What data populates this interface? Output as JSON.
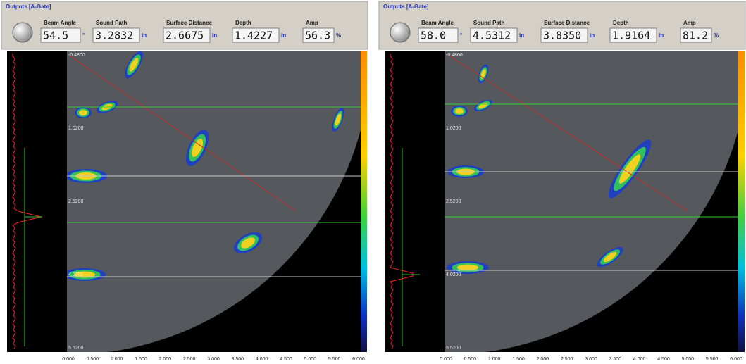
{
  "panels": [
    {
      "title": "Outputs [A-Gate]",
      "readouts": [
        {
          "label": "Beam Angle",
          "value": "54.5",
          "unit": "°"
        },
        {
          "label": "Sound Path",
          "value": "3.2832",
          "unit": "in"
        },
        {
          "label": "Surface Distance",
          "value": "2.6675",
          "unit": "in"
        },
        {
          "label": "Depth",
          "value": "1.4227",
          "unit": "in"
        },
        {
          "label": "Amp",
          "value": "56.3",
          "unit": "%"
        }
      ],
      "y_ticks": [
        "-0.4800",
        "1.0200",
        "2.5200",
        "4.0200",
        "5.5200"
      ],
      "x_ticks": [
        "0.000",
        "0.500",
        "1.000",
        "1.500",
        "2.000",
        "2.500",
        "3.000",
        "3.500",
        "4.000",
        "4.500",
        "5.000",
        "5.500",
        "6.000"
      ]
    },
    {
      "title": "Outputs [A-Gate]",
      "readouts": [
        {
          "label": "Beam Angle",
          "value": "58.0",
          "unit": "°"
        },
        {
          "label": "Sound Path",
          "value": "4.5312",
          "unit": "in"
        },
        {
          "label": "Surface Distance",
          "value": "3.8350",
          "unit": "in"
        },
        {
          "label": "Depth",
          "value": "1.9164",
          "unit": "in"
        },
        {
          "label": "Amp",
          "value": "81.2",
          "unit": "%"
        }
      ],
      "y_ticks": [
        "-0.4800",
        "1.0200",
        "2.5200",
        "4.0200",
        "5.5200"
      ],
      "x_ticks": [
        "0.000",
        "0.500",
        "1.000",
        "1.500",
        "2.000",
        "2.500",
        "3.000",
        "3.500",
        "4.000",
        "4.500",
        "5.000",
        "5.500",
        "6.000"
      ]
    }
  ]
}
